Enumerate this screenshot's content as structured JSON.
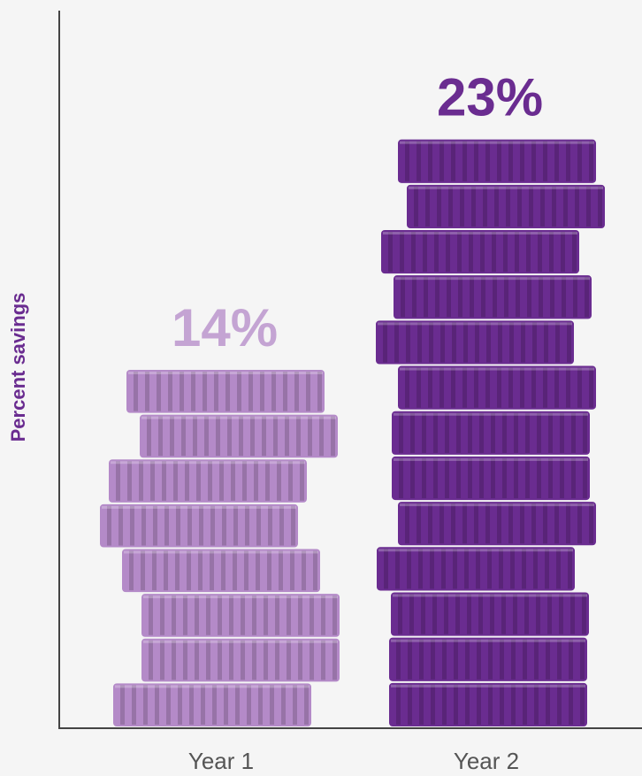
{
  "chart_data": {
    "type": "bar",
    "y_label": "Percent savings",
    "categories": [
      "Year 1",
      "Year 2"
    ],
    "values": [
      14,
      23
    ],
    "value_labels": [
      "14%",
      "23%"
    ],
    "colors": [
      "#b48ac8",
      "#6a2c90"
    ],
    "ylim": [
      0,
      28
    ]
  }
}
